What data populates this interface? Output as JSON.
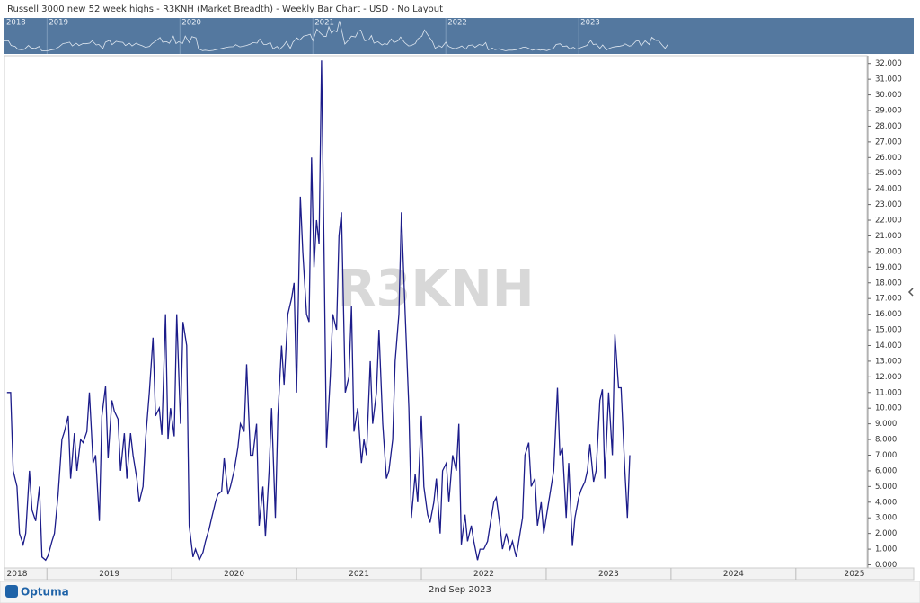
{
  "title": "Russell 3000 new 52 week highs - R3KNH (Market Breadth) - Weekly Bar Chart - USD - No Layout",
  "footer": {
    "logo": "Optuma",
    "date": "2nd Sep 2023"
  },
  "chart_data": {
    "type": "line",
    "watermark": "R3KNH",
    "color": "#1c1c8a",
    "x": [
      2018.68,
      2018.71,
      2018.73,
      2018.76,
      2018.78,
      2018.81,
      2018.83,
      2018.86,
      2018.88,
      2018.91,
      2018.94,
      2018.96,
      2018.99,
      2019.01,
      2019.04,
      2019.06,
      2019.09,
      2019.12,
      2019.14,
      2019.17,
      2019.19,
      2019.22,
      2019.24,
      2019.27,
      2019.29,
      2019.32,
      2019.34,
      2019.37,
      2019.39,
      2019.42,
      2019.44,
      2019.47,
      2019.49,
      2019.52,
      2019.54,
      2019.57,
      2019.59,
      2019.62,
      2019.64,
      2019.67,
      2019.69,
      2019.72,
      2019.74,
      2019.77,
      2019.79,
      2019.82,
      2019.85,
      2019.87,
      2019.9,
      2019.92,
      2019.95,
      2019.97,
      2019.99,
      2020.02,
      2020.04,
      2020.07,
      2020.09,
      2020.12,
      2020.14,
      2020.17,
      2020.19,
      2020.22,
      2020.25,
      2020.27,
      2020.3,
      2020.32,
      2020.35,
      2020.37,
      2020.4,
      2020.42,
      2020.45,
      2020.47,
      2020.5,
      2020.53,
      2020.55,
      2020.58,
      2020.6,
      2020.63,
      2020.65,
      2020.68,
      2020.7,
      2020.73,
      2020.75,
      2020.78,
      2020.8,
      2020.83,
      2020.85,
      2020.88,
      2020.9,
      2020.93,
      2020.96,
      2020.98,
      2021.0,
      2021.03,
      2021.05,
      2021.08,
      2021.1,
      2021.12,
      2021.14,
      2021.16,
      2021.18,
      2021.2,
      2021.22,
      2021.24,
      2021.27,
      2021.29,
      2021.32,
      2021.34,
      2021.36,
      2021.39,
      2021.42,
      2021.44,
      2021.46,
      2021.49,
      2021.52,
      2021.54,
      2021.56,
      2021.59,
      2021.61,
      2021.64,
      2021.66,
      2021.69,
      2021.72,
      2021.74,
      2021.77,
      2021.79,
      2021.82,
      2021.84,
      2021.87,
      2021.9,
      2021.92,
      2021.95,
      2021.97,
      2022.0,
      2022.02,
      2022.05,
      2022.07,
      2022.1,
      2022.12,
      2022.15,
      2022.17,
      2022.2,
      2022.22,
      2022.25,
      2022.28,
      2022.3,
      2022.32,
      2022.35,
      2022.37,
      2022.4,
      2022.42,
      2022.45,
      2022.47,
      2022.5,
      2022.53,
      2022.55,
      2022.58,
      2022.6,
      2022.63,
      2022.65,
      2022.68,
      2022.71,
      2022.73,
      2022.76,
      2022.78,
      2022.81,
      2022.83,
      2022.86,
      2022.88,
      2022.91,
      2022.93,
      2022.96,
      2022.98,
      2023.01,
      2023.03,
      2023.06,
      2023.09,
      2023.11,
      2023.13,
      2023.16,
      2023.18,
      2023.21,
      2023.23,
      2023.26,
      2023.28,
      2023.31,
      2023.33,
      2023.35,
      2023.38,
      2023.4,
      2023.43,
      2023.45,
      2023.47,
      2023.5,
      2023.53,
      2023.55,
      2023.58,
      2023.6,
      2023.63,
      2023.65,
      2023.67
    ],
    "values": [
      11,
      11,
      6,
      5,
      2,
      1.3,
      2,
      6,
      3.5,
      2.8,
      5,
      0.5,
      0.3,
      0.6,
      1.5,
      2,
      4.5,
      8,
      8.5,
      9.5,
      5.5,
      8.4,
      6,
      8,
      7.8,
      8.5,
      11,
      6.5,
      7,
      2.8,
      9.5,
      11.4,
      6.8,
      10.5,
      9.8,
      9.3,
      6,
      8.4,
      5.5,
      8.4,
      7,
      5.5,
      4,
      5,
      8,
      11,
      14.5,
      9.5,
      10,
      8.3,
      16,
      8,
      10,
      8.2,
      16,
      9,
      15.5,
      14,
      2.5,
      0.5,
      1,
      0.3,
      0.8,
      1.5,
      2.3,
      3,
      4,
      4.5,
      4.7,
      6.8,
      4.5,
      5,
      6,
      7.5,
      9,
      8.5,
      12.8,
      7,
      7,
      9,
      2.5,
      5,
      1.8,
      6,
      10,
      3,
      9.5,
      14,
      11.5,
      16,
      17,
      18,
      11,
      23.5,
      20,
      16,
      15.5,
      26,
      19,
      22,
      20.5,
      32.2,
      20,
      7.5,
      12,
      16,
      15,
      21,
      22.5,
      11,
      12,
      16.5,
      8.5,
      10,
      6.5,
      8,
      7,
      13,
      9,
      11,
      15,
      9,
      5.5,
      6,
      8,
      13,
      16,
      22.5,
      16,
      10,
      3,
      5.8,
      4,
      9.5,
      5,
      3.2,
      2.7,
      4,
      5.5,
      2,
      6,
      6.5,
      4,
      7,
      6,
      9,
      1.3,
      3.2,
      1.5,
      2.5,
      1.5,
      0.3,
      1,
      1,
      1.5,
      2.5,
      4,
      4.3,
      2.5,
      1,
      2,
      1,
      1.5,
      0.5,
      1.5,
      3,
      7,
      7.8,
      5,
      5.5,
      2.5,
      4,
      2,
      3.5,
      4.5,
      6,
      11.3,
      7,
      7.5,
      3,
      6.5,
      1.2,
      3,
      4.3,
      4.8,
      5.3,
      6,
      7.7,
      5.3,
      6,
      10.5,
      11.2,
      5.5,
      11,
      7,
      14.7,
      11.3,
      11.3,
      6,
      3,
      7
    ],
    "xlim": [
      2018.66,
      2025.57
    ],
    "xticks": [
      2018,
      2019,
      2020,
      2021,
      2022,
      2023,
      2024,
      2025
    ],
    "ylim": [
      -0.2,
      32.5
    ],
    "yticks": [
      {
        "value": 0,
        "label": "0.000"
      },
      {
        "value": 1,
        "label": "1.000"
      },
      {
        "value": 2,
        "label": "2.000"
      },
      {
        "value": 3,
        "label": "3.000"
      },
      {
        "value": 4,
        "label": "4.000"
      },
      {
        "value": 5,
        "label": "5.000"
      },
      {
        "value": 6,
        "label": "6.000"
      },
      {
        "value": 7,
        "label": "7.000"
      },
      {
        "value": 8,
        "label": "8.000"
      },
      {
        "value": 9,
        "label": "9.000"
      },
      {
        "value": 10,
        "label": "10.000"
      },
      {
        "value": 11,
        "label": "11.000"
      },
      {
        "value": 12,
        "label": "12.000"
      },
      {
        "value": 13,
        "label": "13.000"
      },
      {
        "value": 14,
        "label": "14.000"
      },
      {
        "value": 15,
        "label": "15.000"
      },
      {
        "value": 16,
        "label": "16.000"
      },
      {
        "value": 17,
        "label": "17.000"
      },
      {
        "value": 18,
        "label": "18.000"
      },
      {
        "value": 19,
        "label": "19.000"
      },
      {
        "value": 20,
        "label": "20.000"
      },
      {
        "value": 21,
        "label": "21.000"
      },
      {
        "value": 22,
        "label": "22.000"
      },
      {
        "value": 23,
        "label": "23.000"
      },
      {
        "value": 24,
        "label": "24.000"
      },
      {
        "value": 25,
        "label": "25.000"
      },
      {
        "value": 26,
        "label": "26.000"
      },
      {
        "value": 27,
        "label": "27.000"
      },
      {
        "value": 28,
        "label": "28.000"
      },
      {
        "value": 29,
        "label": "29.000"
      },
      {
        "value": 30,
        "label": "30.000"
      },
      {
        "value": 31,
        "label": "31.000"
      },
      {
        "value": 32,
        "label": "32.000"
      }
    ],
    "overview": {
      "xlim": [
        2018.68,
        2025.52
      ],
      "xticks": [
        2018,
        2019,
        2020,
        2021,
        2022,
        2023
      ]
    }
  }
}
